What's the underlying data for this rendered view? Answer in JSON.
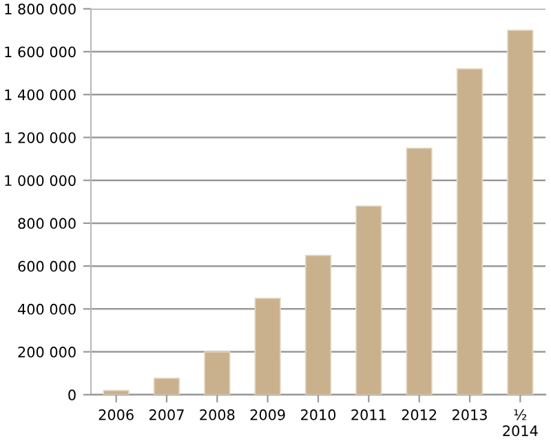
{
  "chart_data": {
    "type": "bar",
    "categories": [
      "2006",
      "2007",
      "2008",
      "2009",
      "2010",
      "2011",
      "2012",
      "2013",
      "½\n2014"
    ],
    "values": [
      20000,
      77000,
      200000,
      450000,
      650000,
      880000,
      1150000,
      1520000,
      1700000
    ],
    "color": "#c9b18e",
    "ylim": [
      0,
      1800000
    ],
    "yticks": [
      {
        "value": 0,
        "label": "0"
      },
      {
        "value": 200000,
        "label": "200 000"
      },
      {
        "value": 400000,
        "label": "400 000"
      },
      {
        "value": 600000,
        "label": "600 000"
      },
      {
        "value": 800000,
        "label": "800 000"
      },
      {
        "value": 1000000,
        "label": "1 000 000"
      },
      {
        "value": 1200000,
        "label": "1 200 000"
      },
      {
        "value": 1400000,
        "label": "1 400 000"
      },
      {
        "value": 1600000,
        "label": "1 600 000"
      },
      {
        "value": 1800000,
        "label": "1 800 000"
      }
    ],
    "grid": "y"
  }
}
